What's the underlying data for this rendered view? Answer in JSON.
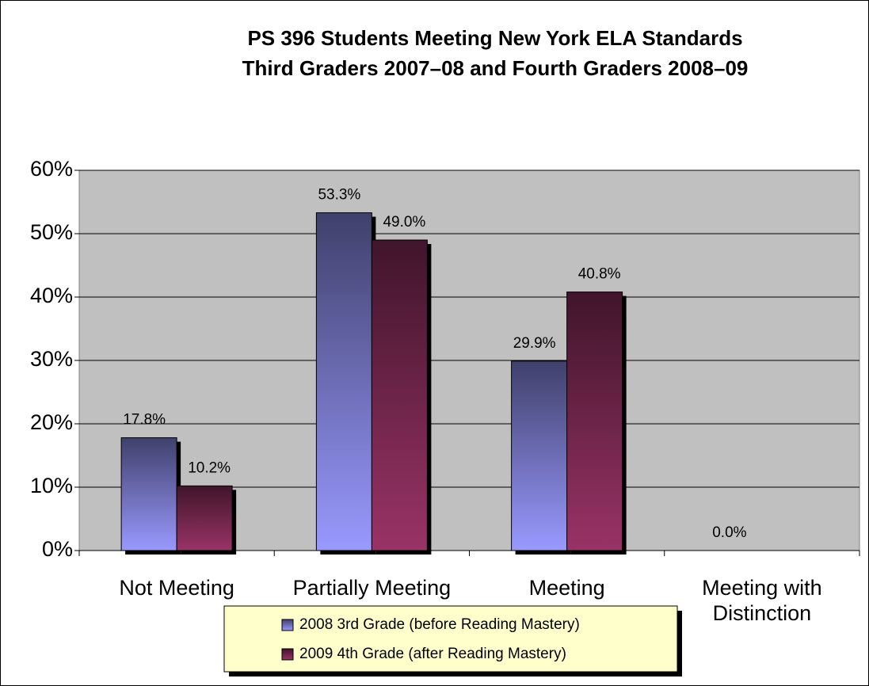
{
  "chart_data": {
    "type": "bar",
    "title": [
      "PS 396 Students Meeting New York ELA Standards",
      "Third Graders 2007–08 and Fourth Graders 2008–09"
    ],
    "categories": [
      "Not Meeting",
      "Partially Meeting",
      "Meeting",
      "Meeting with Distinction"
    ],
    "series": [
      {
        "name": "2008 3rd Grade (before Reading Mastery)",
        "color": "#9999ff",
        "values": [
          17.8,
          53.3,
          29.9,
          0
        ],
        "value_labels": [
          "17.8%",
          "53.3%",
          "29.9%",
          "0.0%"
        ]
      },
      {
        "name": "2009 4th Grade (after Reading Mastery)",
        "color": "#993366",
        "values": [
          10.2,
          49.0,
          40.8,
          null
        ],
        "value_labels": [
          "10.2%",
          "49.0%",
          "40.8%",
          null
        ]
      }
    ],
    "ylim": [
      0,
      60
    ],
    "yticks": [
      {
        "value": 0,
        "label": "0%"
      },
      {
        "value": 10,
        "label": "10%"
      },
      {
        "value": 20,
        "label": "20%"
      },
      {
        "value": 30,
        "label": "30%"
      },
      {
        "value": 40,
        "label": "40%"
      },
      {
        "value": 50,
        "label": "50%"
      },
      {
        "value": 60,
        "label": "60%"
      }
    ],
    "grid": true,
    "legend": "bottom"
  }
}
